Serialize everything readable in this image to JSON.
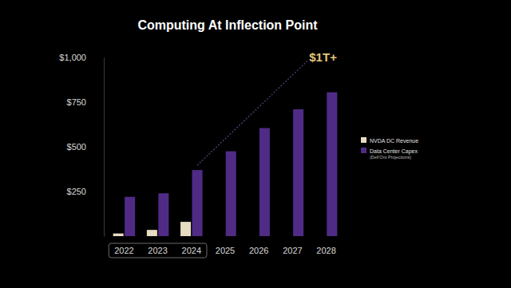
{
  "chart_data": {
    "type": "bar",
    "title": "Computing At Inflection Point",
    "categories": [
      "2022",
      "2023",
      "2024",
      "2025",
      "2026",
      "2027",
      "2028"
    ],
    "series": [
      {
        "name": "NVDA DC Revenue",
        "color": "#e6dcc2",
        "values": [
          15,
          35,
          80,
          null,
          null,
          null,
          null
        ]
      },
      {
        "name": "Data Center Capex",
        "color": "#4f2b86",
        "values": [
          220,
          240,
          370,
          475,
          605,
          710,
          805
        ]
      }
    ],
    "ylim": [
      0,
      1000
    ],
    "yticks": [
      {
        "value": 250,
        "label": "$250"
      },
      {
        "value": 500,
        "label": "$500"
      },
      {
        "value": 750,
        "label": "$750"
      },
      {
        "value": 1000,
        "label": "$1,000"
      }
    ],
    "grid": false,
    "legend": "right",
    "annotations": [
      "$1T+",
      "(Dell'Oro Projections)"
    ]
  }
}
